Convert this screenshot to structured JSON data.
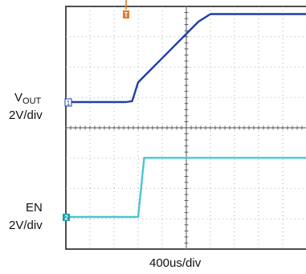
{
  "chart_data": {
    "type": "line",
    "x": [
      0,
      0.2,
      0.4,
      0.6,
      0.8,
      1.0,
      1.1,
      1.2,
      1.3,
      1.4,
      1.6,
      1.8,
      2.0,
      2.2,
      2.4,
      2.6,
      2.8,
      3.0,
      3.2,
      3.4,
      3.6,
      3.8,
      4.0,
      4.2
    ],
    "series": [
      {
        "name_main": "V",
        "name_sub": "OUT",
        "scale": "2V/div",
        "color": "#1f3fa8",
        "values": [
          0,
          0,
          0,
          0,
          0,
          0,
          0.03,
          0.65,
          0.85,
          1.05,
          1.45,
          1.85,
          2.25,
          2.65,
          2.9,
          2.9,
          2.9,
          2.9,
          2.9,
          2.9,
          2.9,
          2.9,
          2.9,
          2.9
        ]
      },
      {
        "name": "EN",
        "scale": "2V/div",
        "color": "#4cc5cf",
        "values": [
          0,
          0,
          0,
          0,
          0,
          0,
          0,
          0,
          1.95,
          1.95,
          1.95,
          1.95,
          1.95,
          1.95,
          1.95,
          1.95,
          1.95,
          1.95,
          1.95,
          1.95,
          1.95,
          1.95,
          1.95,
          1.95
        ]
      }
    ],
    "xlabel": "400us/div",
    "x_divisions": 10,
    "y_divisions": 8,
    "grid": true,
    "trigger_marker": "T",
    "channel_markers": [
      "1",
      "2"
    ]
  }
}
